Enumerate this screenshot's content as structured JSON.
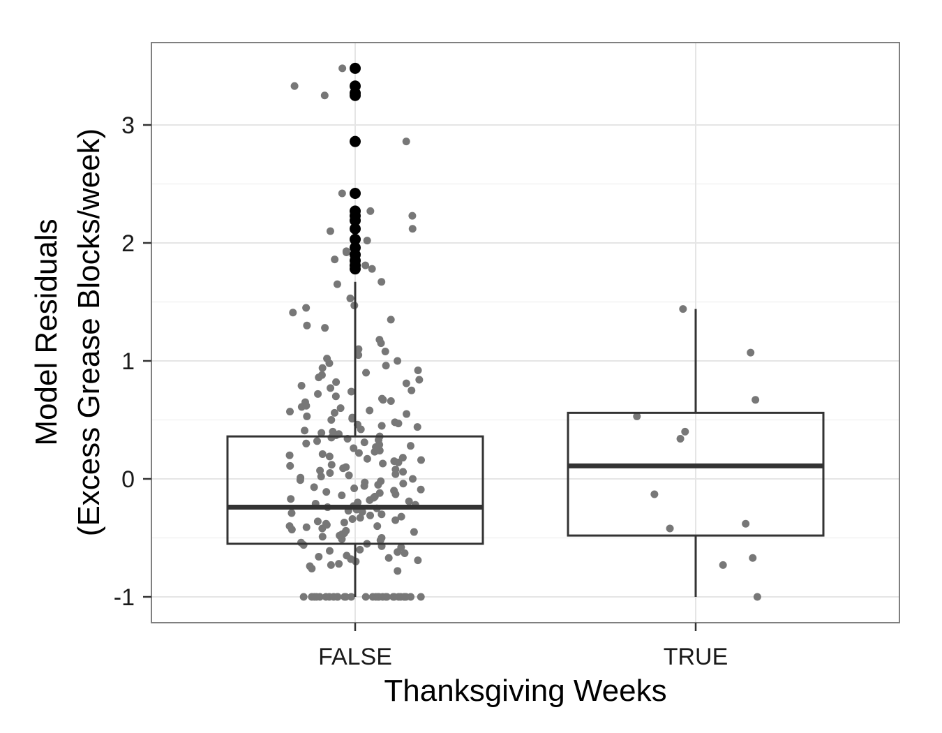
{
  "chart_data": {
    "type": "box",
    "xlabel": "Thanksgiving Weeks",
    "ylabel_line1": "Model Residuals",
    "ylabel_line2": "(Excess Grease Blocks/week)",
    "categories": [
      "FALSE",
      "TRUE"
    ],
    "ylim": [
      -1.22,
      3.7
    ],
    "y_ticks": [
      -1,
      0,
      1,
      2,
      3
    ],
    "y_tick_labels": [
      "-1",
      "0",
      "1",
      "2",
      "3"
    ],
    "grid": true,
    "boxes": [
      {
        "category": "FALSE",
        "min": -1.0,
        "q1": -0.55,
        "median": -0.24,
        "q3": 0.36,
        "whisker_high": 1.67,
        "outliers": [
          3.48,
          3.33,
          3.27,
          3.25,
          2.86,
          2.42,
          2.27,
          2.23,
          2.19,
          2.12,
          2.03,
          1.96,
          1.9,
          1.85,
          1.81,
          1.78
        ]
      },
      {
        "category": "TRUE",
        "min": -1.0,
        "q1": -0.48,
        "median": 0.11,
        "q3": 0.56,
        "whisker_high": 1.44,
        "outliers": []
      }
    ],
    "jitter_points": {
      "FALSE": [
        -1,
        -1,
        -1,
        -1,
        -1,
        -1,
        -1,
        -1,
        -1,
        -1,
        -1,
        -1,
        -1,
        -1,
        -1,
        -1,
        -1,
        -1,
        -1,
        -1,
        -1,
        -1,
        -1,
        -1,
        -1,
        -1,
        -1,
        -1,
        -1,
        -1,
        -0.78,
        -0.76,
        -0.74,
        -0.73,
        -0.72,
        -0.7,
        -0.69,
        -0.68,
        -0.67,
        -0.66,
        -0.65,
        -0.63,
        -0.62,
        -0.61,
        -0.6,
        -0.58,
        -0.57,
        -0.56,
        -0.55,
        -0.54,
        -0.52,
        -0.51,
        -0.5,
        -0.49,
        -0.48,
        -0.47,
        -0.46,
        -0.45,
        -0.44,
        -0.43,
        -0.42,
        -0.41,
        -0.4,
        -0.4,
        -0.39,
        -0.38,
        -0.37,
        -0.36,
        -0.35,
        -0.34,
        -0.33,
        -0.32,
        -0.31,
        -0.3,
        -0.29,
        -0.28,
        -0.27,
        -0.26,
        -0.25,
        -0.24,
        -0.23,
        -0.22,
        -0.21,
        -0.2,
        -0.19,
        -0.18,
        -0.17,
        -0.16,
        -0.15,
        -0.14,
        -0.13,
        -0.12,
        -0.11,
        -0.1,
        -0.09,
        -0.08,
        -0.07,
        -0.06,
        -0.05,
        -0.04,
        -0.03,
        -0.02,
        -0.01,
        0.0,
        0.01,
        0.02,
        0.03,
        0.04,
        0.05,
        0.06,
        0.07,
        0.08,
        0.09,
        0.1,
        0.11,
        0.12,
        0.13,
        0.14,
        0.15,
        0.16,
        0.17,
        0.18,
        0.19,
        0.2,
        0.21,
        0.22,
        0.23,
        0.24,
        0.25,
        0.26,
        0.27,
        0.28,
        0.29,
        0.3,
        0.31,
        0.32,
        0.33,
        0.34,
        0.35,
        0.36,
        0.37,
        0.38,
        0.39,
        0.4,
        0.41,
        0.42,
        0.44,
        0.45,
        0.46,
        0.47,
        0.48,
        0.5,
        0.51,
        0.52,
        0.53,
        0.55,
        0.56,
        0.57,
        0.58,
        0.6,
        0.61,
        0.62,
        0.63,
        0.65,
        0.66,
        0.67,
        0.68,
        0.7,
        0.72,
        0.74,
        0.75,
        0.77,
        0.79,
        0.81,
        0.82,
        0.84,
        0.86,
        0.88,
        0.9,
        0.92,
        0.94,
        0.96,
        0.98,
        1.0,
        1.02,
        1.05,
        1.08,
        1.1,
        1.15,
        1.18,
        1.28,
        1.3,
        1.35,
        1.41,
        1.45,
        1.47,
        1.53,
        1.65,
        1.67,
        1.78,
        1.81,
        1.86,
        1.92,
        1.93,
        2.02,
        2.1,
        2.12,
        2.23,
        2.27,
        2.42,
        2.86,
        3.25,
        3.33,
        3.48
      ],
      "TRUE": [
        1.44,
        1.07,
        0.67,
        0.53,
        0.4,
        0.34,
        -0.13,
        -0.38,
        -0.42,
        -0.67,
        -0.73,
        -1.0
      ]
    }
  }
}
